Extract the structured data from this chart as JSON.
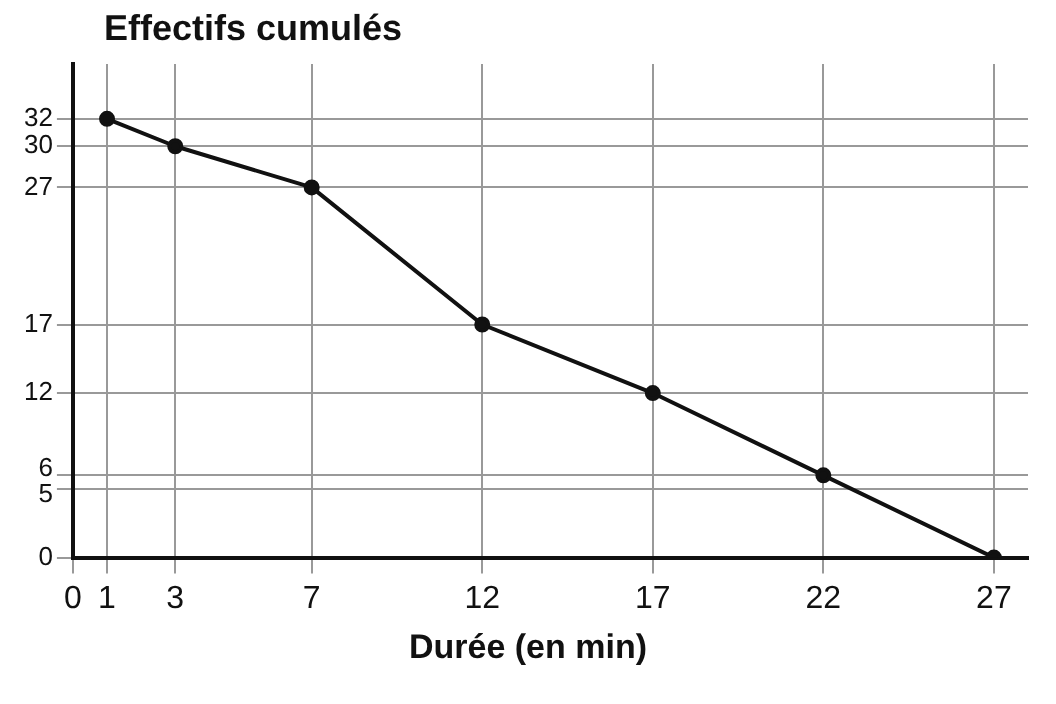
{
  "chart_data": {
    "type": "line",
    "ylabel": "Effectifs cumulés",
    "xlabel": "Durée (en min)",
    "x": [
      1,
      3,
      7,
      12,
      17,
      22,
      27
    ],
    "series": [
      {
        "color": "#111111",
        "values": [
          32,
          30,
          27,
          17,
          12,
          6,
          0
        ]
      }
    ],
    "xlim": [
      0,
      28
    ],
    "xticks": [
      0,
      1,
      3,
      7,
      12,
      17,
      22,
      27
    ],
    "ylim": [
      0,
      36
    ],
    "yticks": [
      0,
      5,
      6,
      12,
      17,
      27,
      30,
      32
    ],
    "grid": true,
    "legend": false,
    "marker": "circle",
    "line_style": "solid"
  }
}
